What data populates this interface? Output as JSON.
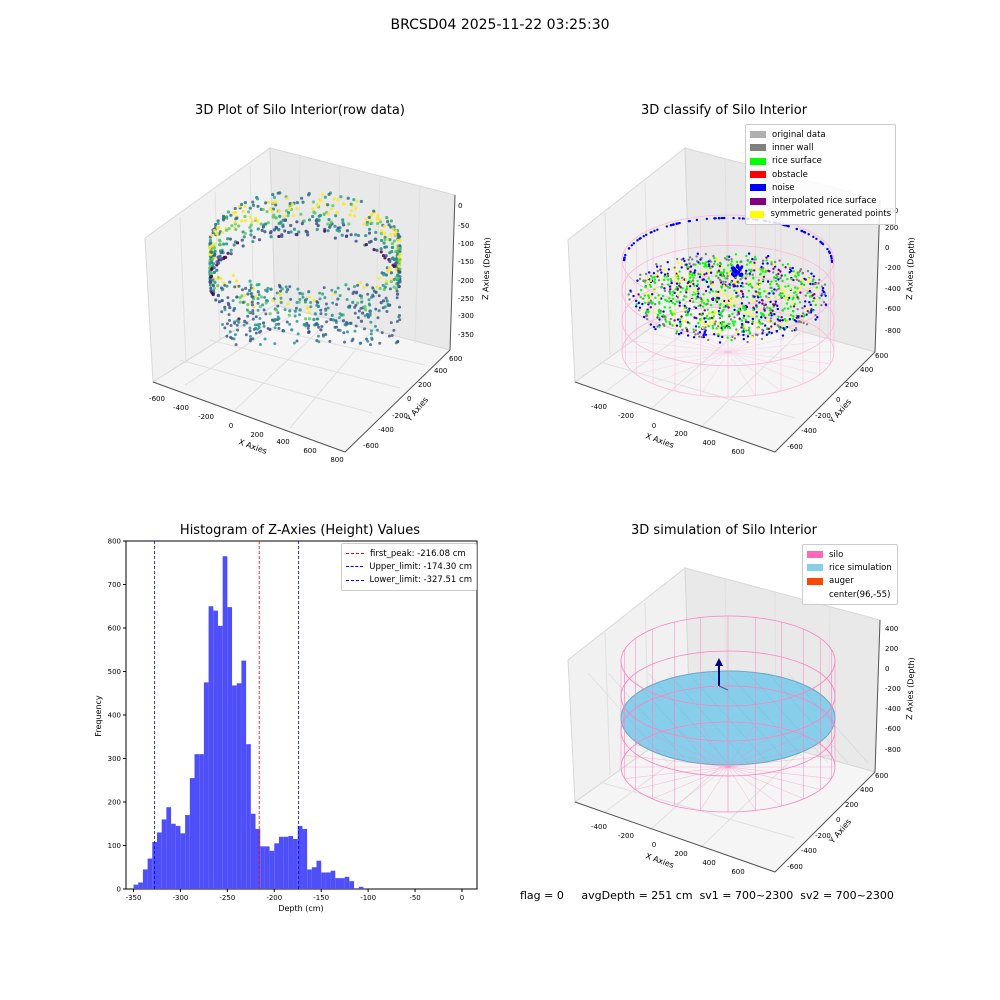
{
  "suptitle": "BRCSD04 2025-11-22 03:25:30",
  "panels": {
    "raw": {
      "title": "3D Plot of Silo Interior(row data)",
      "xlabel": "X Axies",
      "ylabel": "Y Axies",
      "zlabel": "Z Axies (Depth)",
      "xticks": [
        "-600",
        "-400",
        "-200",
        "0",
        "200",
        "400",
        "600",
        "800"
      ],
      "yticks": [
        "-600",
        "-400",
        "-200",
        "0",
        "200",
        "400",
        "600"
      ],
      "zticks": [
        "0",
        "-50",
        "-100",
        "-150",
        "-200",
        "-250",
        "-300",
        "-350"
      ]
    },
    "classify": {
      "title": "3D classify of Silo Interior",
      "xlabel": "X Axies",
      "ylabel": "Y Axies",
      "zlabel": "Z Axies (Depth)",
      "xticks": [
        "-400",
        "-200",
        "0",
        "200",
        "400",
        "600"
      ],
      "yticks": [
        "-600",
        "-400",
        "-200",
        "0",
        "200",
        "400",
        "600"
      ],
      "zticks": [
        "200",
        "0",
        "-200",
        "-400",
        "-600",
        "-800"
      ],
      "legend": [
        {
          "label": "original data",
          "color": "#b0b0b0"
        },
        {
          "label": "inner wall",
          "color": "#808080"
        },
        {
          "label": "rice surface",
          "color": "#00ff00"
        },
        {
          "label": "obstacle",
          "color": "#ff0000"
        },
        {
          "label": "noise",
          "color": "#0000ff"
        },
        {
          "label": "interpolated rice surface",
          "color": "#800080"
        },
        {
          "label": "symmetric generated points",
          "color": "#ffff00"
        }
      ]
    },
    "simulation": {
      "title": "3D simulation of Silo Interior",
      "xlabel": "X Axies",
      "ylabel": "Y Axies",
      "zlabel": "Z Axies (Depth)",
      "xticks": [
        "-400",
        "-200",
        "0",
        "200",
        "400",
        "600"
      ],
      "yticks": [
        "-600",
        "-400",
        "-200",
        "0",
        "200",
        "400",
        "600"
      ],
      "zticks": [
        "400",
        "200",
        "0",
        "-200",
        "-400",
        "-600",
        "-800"
      ],
      "legend": [
        {
          "label": "silo",
          "color": "#ff69b4"
        },
        {
          "label": "rice simulation",
          "color": "#87ceeb"
        },
        {
          "label": "auger",
          "color": "#ff4500"
        },
        {
          "label": "center(96,-55)",
          "color": ""
        }
      ]
    }
  },
  "chart_data": {
    "type": "bar",
    "title": "Histogram of Z-Axies (Height) Values",
    "xlabel": "Depth (cm)",
    "ylabel": "Frequency",
    "xlim": [
      -358,
      16
    ],
    "ylim": [
      0,
      800
    ],
    "xticks": [
      -350,
      -300,
      -250,
      -200,
      -150,
      -100,
      -50,
      0
    ],
    "yticks": [
      0,
      100,
      200,
      300,
      400,
      500,
      600,
      700,
      800
    ],
    "bin_start": -350,
    "bin_width": 5,
    "values": [
      10,
      15,
      45,
      70,
      108,
      130,
      160,
      188,
      150,
      145,
      128,
      170,
      255,
      310,
      310,
      475,
      650,
      640,
      605,
      765,
      648,
      468,
      473,
      525,
      333,
      173,
      138,
      98,
      98,
      88,
      105,
      120,
      120,
      122,
      115,
      145,
      138,
      45,
      50,
      65,
      38,
      38,
      42,
      25,
      25,
      28,
      18,
      0,
      5
    ],
    "bar_color": "#4f4ff9",
    "vlines": [
      {
        "label": "first_peak: -216.08 cm",
        "x": -216.08,
        "color": "#ff0000"
      },
      {
        "label": "Upper_limit: -174.30 cm",
        "x": -174.3,
        "color": "#0000ff"
      },
      {
        "label": "Lower_limit: -327.51 cm",
        "x": -327.51,
        "color": "#0000ff"
      }
    ],
    "legend_position": "top-right"
  },
  "status": {
    "flag": "flag = 0",
    "avg": "avgDepth = 251 cm",
    "sv1": "sv1 = 700~2300",
    "sv2": "sv2 = 700~2300"
  }
}
